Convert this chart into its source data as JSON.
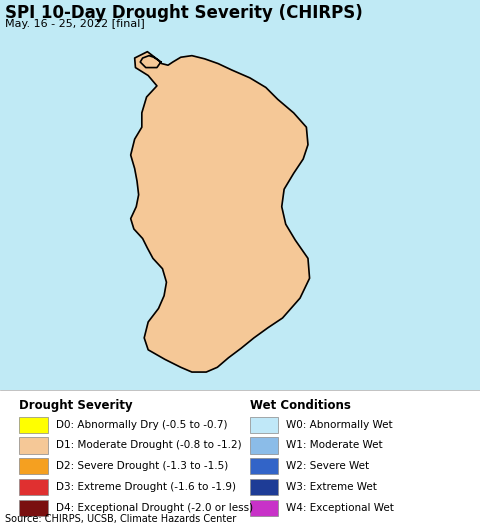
{
  "title": "SPI 10-Day Drought Severity (CHIRPS)",
  "subtitle": "May. 16 - 25, 2022 [final]",
  "bg_color": "#c0eaf5",
  "legend_bg": "#ffffff",
  "legend_area_bg": "#d8f0f8",
  "source_text": "Source: CHIRPS, UCSB, Climate Hazards Center",
  "drought_colors": [
    "#ffff00",
    "#f5c897",
    "#f5a020",
    "#e03030",
    "#7a1010"
  ],
  "drought_labels": [
    "D0: Abnormally Dry (-0.5 to -0.7)",
    "D1: Moderate Drought (-0.8 to -1.2)",
    "D2: Severe Drought (-1.3 to -1.5)",
    "D3: Extreme Drought (-1.6 to -1.9)",
    "D4: Exceptional Drought (-2.0 or less)"
  ],
  "wet_colors": [
    "#c0e8f8",
    "#8bbce8",
    "#3264c8",
    "#1e3c96",
    "#c832c8"
  ],
  "wet_labels": [
    "W0: Abnormally Wet",
    "W1: Moderate Wet",
    "W2: Severe Wet",
    "W3: Extreme Wet",
    "W4: Exceptional Wet"
  ],
  "title_fontsize": 12,
  "subtitle_fontsize": 8,
  "legend_title_fontsize": 8.5,
  "legend_fontsize": 7.5,
  "source_fontsize": 7,
  "map_xlim": [
    79.35,
    82.7
  ],
  "map_ylim": [
    5.7,
    10.5
  ],
  "india_color": "#f0e8c0",
  "sl_outline_color": "#000000",
  "district_outline_color": "#888888"
}
